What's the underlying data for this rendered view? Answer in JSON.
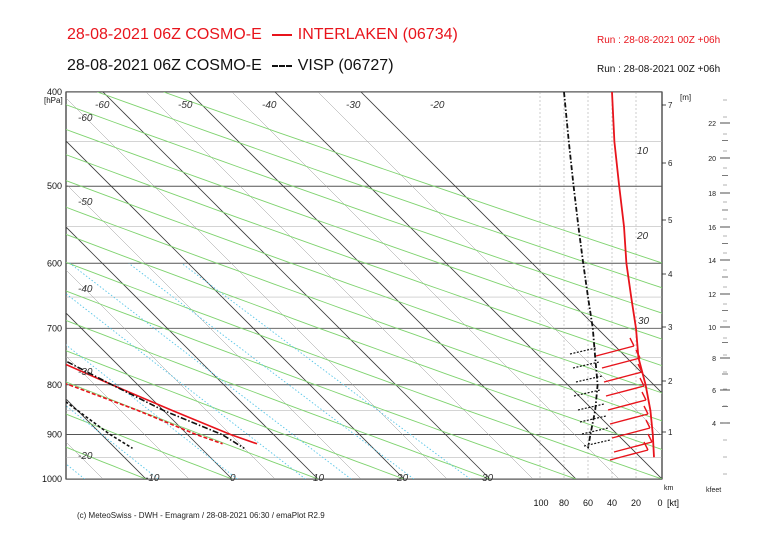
{
  "header": {
    "title1_left": "28-08-2021 06Z COSMO-E",
    "title1_right": "INTERLAKEN (06734)",
    "title2_left": "28-08-2021 06Z COSMO-E",
    "title2_right": "VISP (06727)",
    "run1": "Run : 28-08-2021 00Z +06h",
    "run2": "Run : 28-08-2021 00Z +06h"
  },
  "footer": "(c) MeteoSwiss - DWH - Emagram / 28-08-2021 06:30 / emaPlot R2.9",
  "colors": {
    "interlaken": "#e8141c",
    "visp": "#111111",
    "isotherm": "#5b5b5b",
    "dry_adiabat": "#7fd36f",
    "mixing_ratio": "#58c6e8",
    "grid": "#cfcfcf"
  },
  "chart_data": {
    "type": "line",
    "y_axis": {
      "unit_label": "[hPa]",
      "ylim": [
        1000,
        400
      ],
      "scale": "log",
      "ticks": [
        400,
        500,
        600,
        700,
        800,
        900,
        1000
      ]
    },
    "temperature_labels": [
      {
        "value": "-60"
      },
      {
        "value": "-50"
      },
      {
        "value": "-40"
      },
      {
        "value": "-30"
      },
      {
        "value": "-20"
      },
      {
        "value": "-10"
      },
      {
        "value": "0"
      },
      {
        "value": "10"
      },
      {
        "value": "20"
      },
      {
        "value": "30"
      }
    ],
    "km_axis": {
      "label": "[m]",
      "ticks": [
        "7",
        "6",
        "5",
        "4",
        "3",
        "2",
        "1"
      ]
    },
    "kfeet_axis": {
      "label": "kfeet",
      "ticks": [
        "22",
        "20",
        "18",
        "16",
        "14",
        "12",
        "10",
        "8",
        "6",
        "4"
      ]
    },
    "wind_axis": {
      "label": "[kt]",
      "unit_mark": "km",
      "ticks": [
        "100",
        "80",
        "60",
        "40",
        "20",
        "0"
      ]
    },
    "wind_profile_labels": [
      "10",
      "20",
      "30"
    ],
    "series": [
      {
        "name": "INTERLAKEN (06734)",
        "role": "temperature",
        "points": [
          [
            400,
            -31
          ],
          [
            450,
            -29
          ],
          [
            500,
            -26
          ],
          [
            550,
            -23
          ],
          [
            600,
            -19
          ],
          [
            650,
            -15
          ],
          [
            700,
            -11
          ],
          [
            750,
            -7
          ],
          [
            800,
            -3
          ],
          [
            850,
            1
          ],
          [
            900,
            5
          ],
          [
            920,
            7
          ]
        ]
      },
      {
        "name": "INTERLAKEN (06734)",
        "role": "dewpoint",
        "points": [
          [
            400,
            -49
          ],
          [
            450,
            -45
          ],
          [
            500,
            -44
          ],
          [
            550,
            -40
          ],
          [
            600,
            -33
          ],
          [
            650,
            -27
          ],
          [
            700,
            -22
          ],
          [
            750,
            -15
          ],
          [
            800,
            -8
          ],
          [
            850,
            -3
          ],
          [
            900,
            1
          ],
          [
            920,
            3
          ]
        ]
      },
      {
        "name": "VISP (06727)",
        "role": "temperature",
        "points": [
          [
            400,
            -30
          ],
          [
            450,
            -28
          ],
          [
            500,
            -24
          ],
          [
            550,
            -21
          ],
          [
            600,
            -17
          ],
          [
            650,
            -13
          ],
          [
            700,
            -9
          ],
          [
            750,
            -6
          ],
          [
            800,
            -3
          ],
          [
            850,
            0
          ],
          [
            900,
            4
          ],
          [
            930,
            5
          ]
        ]
      },
      {
        "name": "VISP (06727)",
        "role": "dewpoint",
        "points": [
          [
            400,
            -55
          ],
          [
            450,
            -52
          ],
          [
            500,
            -54
          ],
          [
            550,
            -51
          ],
          [
            600,
            -41
          ],
          [
            650,
            -34
          ],
          [
            700,
            -25
          ],
          [
            750,
            -16
          ],
          [
            800,
            -11
          ],
          [
            850,
            -10
          ],
          [
            900,
            -9
          ],
          [
            930,
            -8
          ]
        ]
      },
      {
        "name": "INTERLAKEN (06734)",
        "role": "wind_speed_kt",
        "points": [
          [
            400,
            40
          ],
          [
            450,
            38
          ],
          [
            500,
            34
          ],
          [
            550,
            30
          ],
          [
            600,
            28
          ],
          [
            650,
            24
          ],
          [
            700,
            20
          ],
          [
            750,
            18
          ],
          [
            800,
            12
          ],
          [
            850,
            8
          ],
          [
            900,
            6
          ],
          [
            950,
            5
          ]
        ]
      },
      {
        "name": "VISP (06727)",
        "role": "wind_speed_kt",
        "points": [
          [
            400,
            80
          ],
          [
            450,
            76
          ],
          [
            500,
            72
          ],
          [
            550,
            68
          ],
          [
            600,
            64
          ],
          [
            650,
            60
          ],
          [
            700,
            56
          ],
          [
            750,
            54
          ],
          [
            800,
            52
          ],
          [
            850,
            54
          ],
          [
            900,
            58
          ],
          [
            930,
            60
          ]
        ]
      }
    ]
  }
}
